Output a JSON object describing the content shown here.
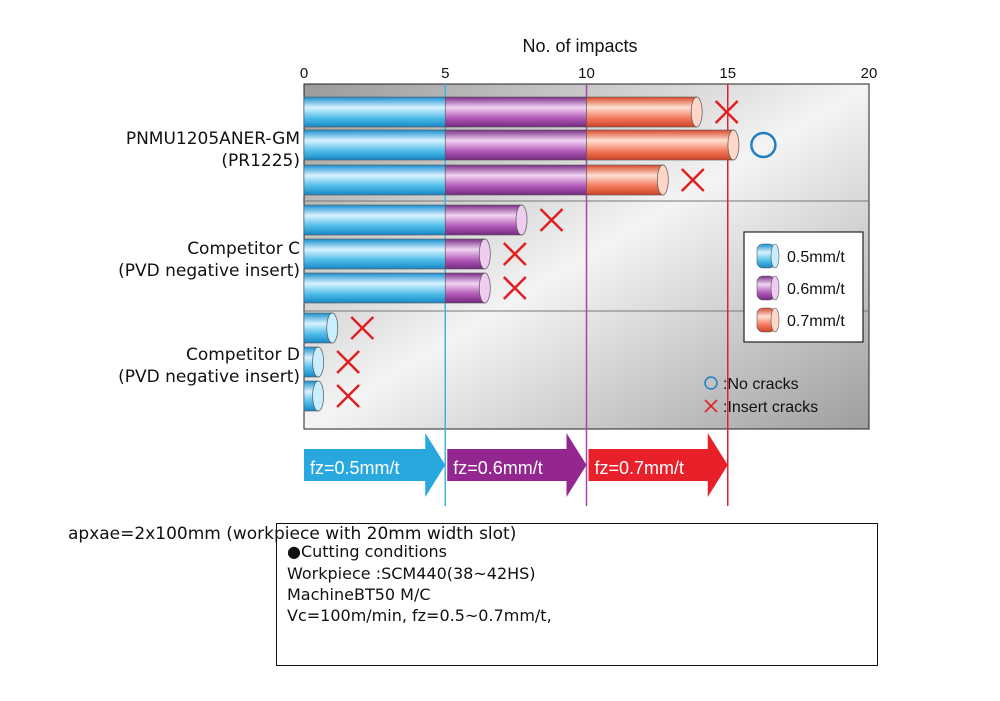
{
  "chart_data": {
    "type": "bar",
    "orientation": "horizontal",
    "stacked": true,
    "title": "",
    "xlabel": "No. of impacts",
    "xlim": [
      0,
      20
    ],
    "xticks": [
      0,
      5,
      10,
      15,
      20
    ],
    "groups": [
      {
        "label": [
          "PNMU1205ANER-GM",
          "(PR1225)"
        ],
        "bars": [
          {
            "segments": [
              5,
              5,
              3.9
            ],
            "total": 13.9,
            "result": "cracks"
          },
          {
            "segments": [
              5,
              5,
              5.2
            ],
            "total": 15.2,
            "result": "no cracks"
          },
          {
            "segments": [
              5,
              5,
              2.7
            ],
            "total": 12.7,
            "result": "cracks"
          }
        ]
      },
      {
        "label": [
          "Competitor C",
          "(PVD negative insert)"
        ],
        "bars": [
          {
            "segments": [
              5,
              2.7
            ],
            "total": 7.7,
            "result": "cracks"
          },
          {
            "segments": [
              5,
              1.4
            ],
            "total": 6.4,
            "result": "cracks"
          },
          {
            "segments": [
              5,
              1.4
            ],
            "total": 6.4,
            "result": "cracks"
          }
        ]
      },
      {
        "label": [
          "Competitor D",
          "(PVD negative insert)"
        ],
        "bars": [
          {
            "segments": [
              1.0
            ],
            "total": 1.0,
            "result": "cracks"
          },
          {
            "segments": [
              0.5
            ],
            "total": 0.5,
            "result": "cracks"
          },
          {
            "segments": [
              0.5
            ],
            "total": 0.5,
            "result": "cracks"
          }
        ]
      }
    ],
    "series": [
      {
        "name": "0.5mm/t",
        "color": "#3cb4e6"
      },
      {
        "name": "0.6mm/t",
        "color": "#a04aa8"
      },
      {
        "name": "0.7mm/t",
        "color": "#f06a4c"
      }
    ],
    "markers": [
      {
        "symbol": "○",
        "label": ":No cracks",
        "color": "#1f7fc4"
      },
      {
        "symbol": "×",
        "label": ":Insert cracks",
        "color": "#e02020"
      }
    ],
    "legend_position": "right",
    "phase_lines": [
      {
        "x": 5,
        "color": "#3cb4e6"
      },
      {
        "x": 10,
        "color": "#a04aa8"
      },
      {
        "x": 15,
        "color": "#e02030"
      }
    ],
    "arrows": [
      {
        "label": "fz=0.5mm/t",
        "from": 0,
        "to": 5,
        "color": "#29a8e0"
      },
      {
        "label": "fz=0.6mm/t",
        "from": 5,
        "to": 10,
        "color": "#93278f"
      },
      {
        "label": "fz=0.7mm/t",
        "from": 10,
        "to": 15,
        "color": "#e8202a"
      }
    ]
  },
  "conditions": {
    "header": "apxae=2x100mm (workpiece with 20mm width slot)",
    "lines": [
      "●Cutting conditions",
      "Workpiece :SCM440(38~42HS)",
      "MachineBT50 M/C",
      "Vc=100m/min, fz=0.5~0.7mm/t,"
    ]
  }
}
